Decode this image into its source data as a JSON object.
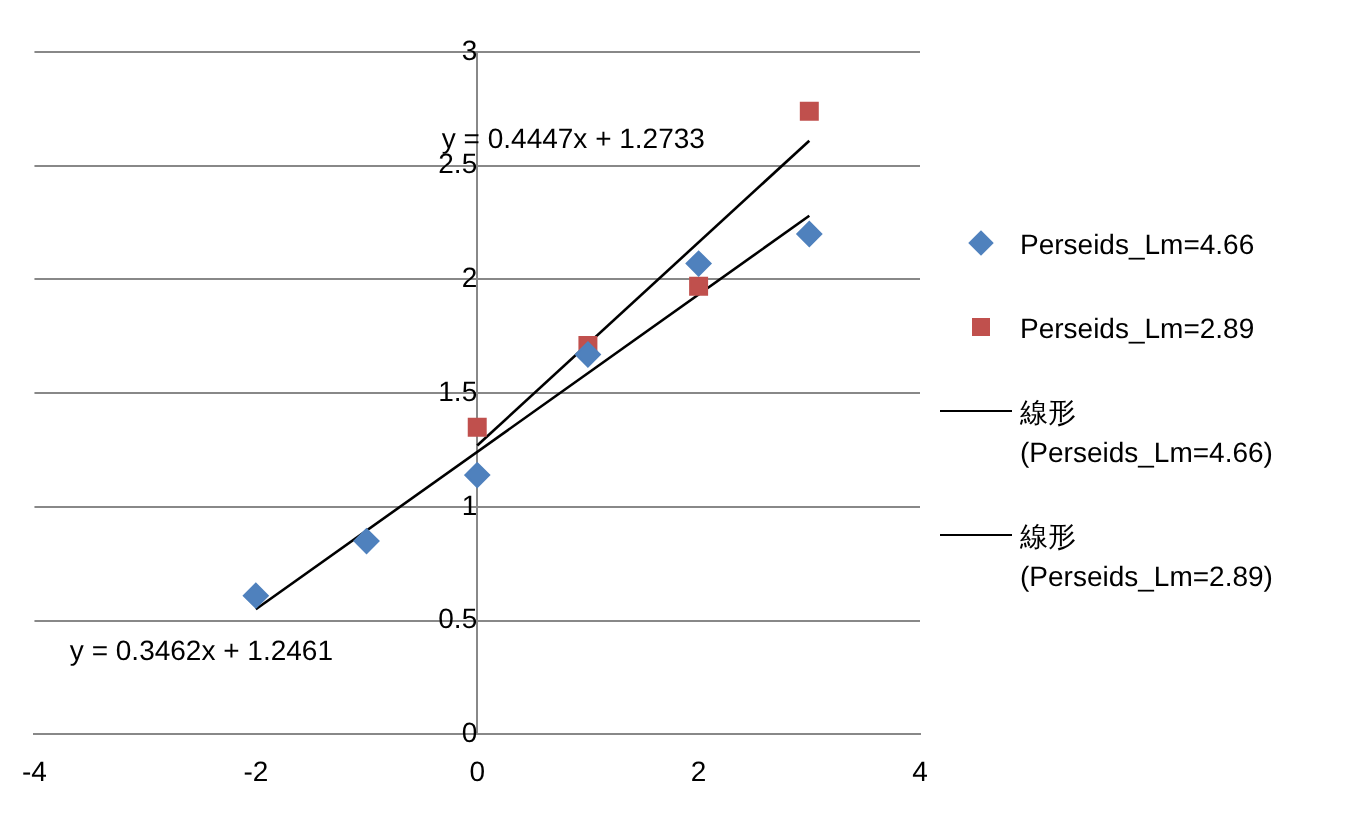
{
  "chart_data": {
    "type": "scatter",
    "series": [
      {
        "name": "Perseids_Lm=4.66",
        "color": "#4f81bd",
        "marker": "diamond",
        "x": [
          -2,
          -1,
          0,
          1,
          2,
          3
        ],
        "values": [
          0.61,
          0.85,
          1.14,
          1.67,
          2.07,
          2.2
        ]
      },
      {
        "name": "Perseids_Lm=2.89",
        "color": "#c0504d",
        "marker": "square",
        "x": [
          0,
          1,
          2,
          3
        ],
        "values": [
          1.35,
          1.71,
          1.97,
          2.74
        ]
      },
      {
        "name": "線形 (Perseids_Lm=4.66)",
        "type": "line",
        "color": "#000000",
        "marker": "none",
        "x": [
          -2,
          3
        ],
        "values": [
          0.55,
          2.28
        ]
      },
      {
        "name": "線形 (Perseids_Lm=2.89)",
        "type": "line",
        "color": "#000000",
        "marker": "none",
        "x": [
          0,
          3
        ],
        "values": [
          1.27,
          2.61
        ]
      }
    ],
    "annotations": [
      "y = 0.4447x + 1.2733",
      "y = 0.3462x + 1.2461"
    ],
    "xlim": [
      -4,
      4
    ],
    "xticks": [
      -4,
      -2,
      0,
      2,
      4
    ],
    "ylim": [
      0,
      3
    ],
    "yticks": [
      0,
      0.5,
      1,
      1.5,
      2,
      2.5,
      3
    ],
    "grid": "y",
    "legend": "right"
  }
}
